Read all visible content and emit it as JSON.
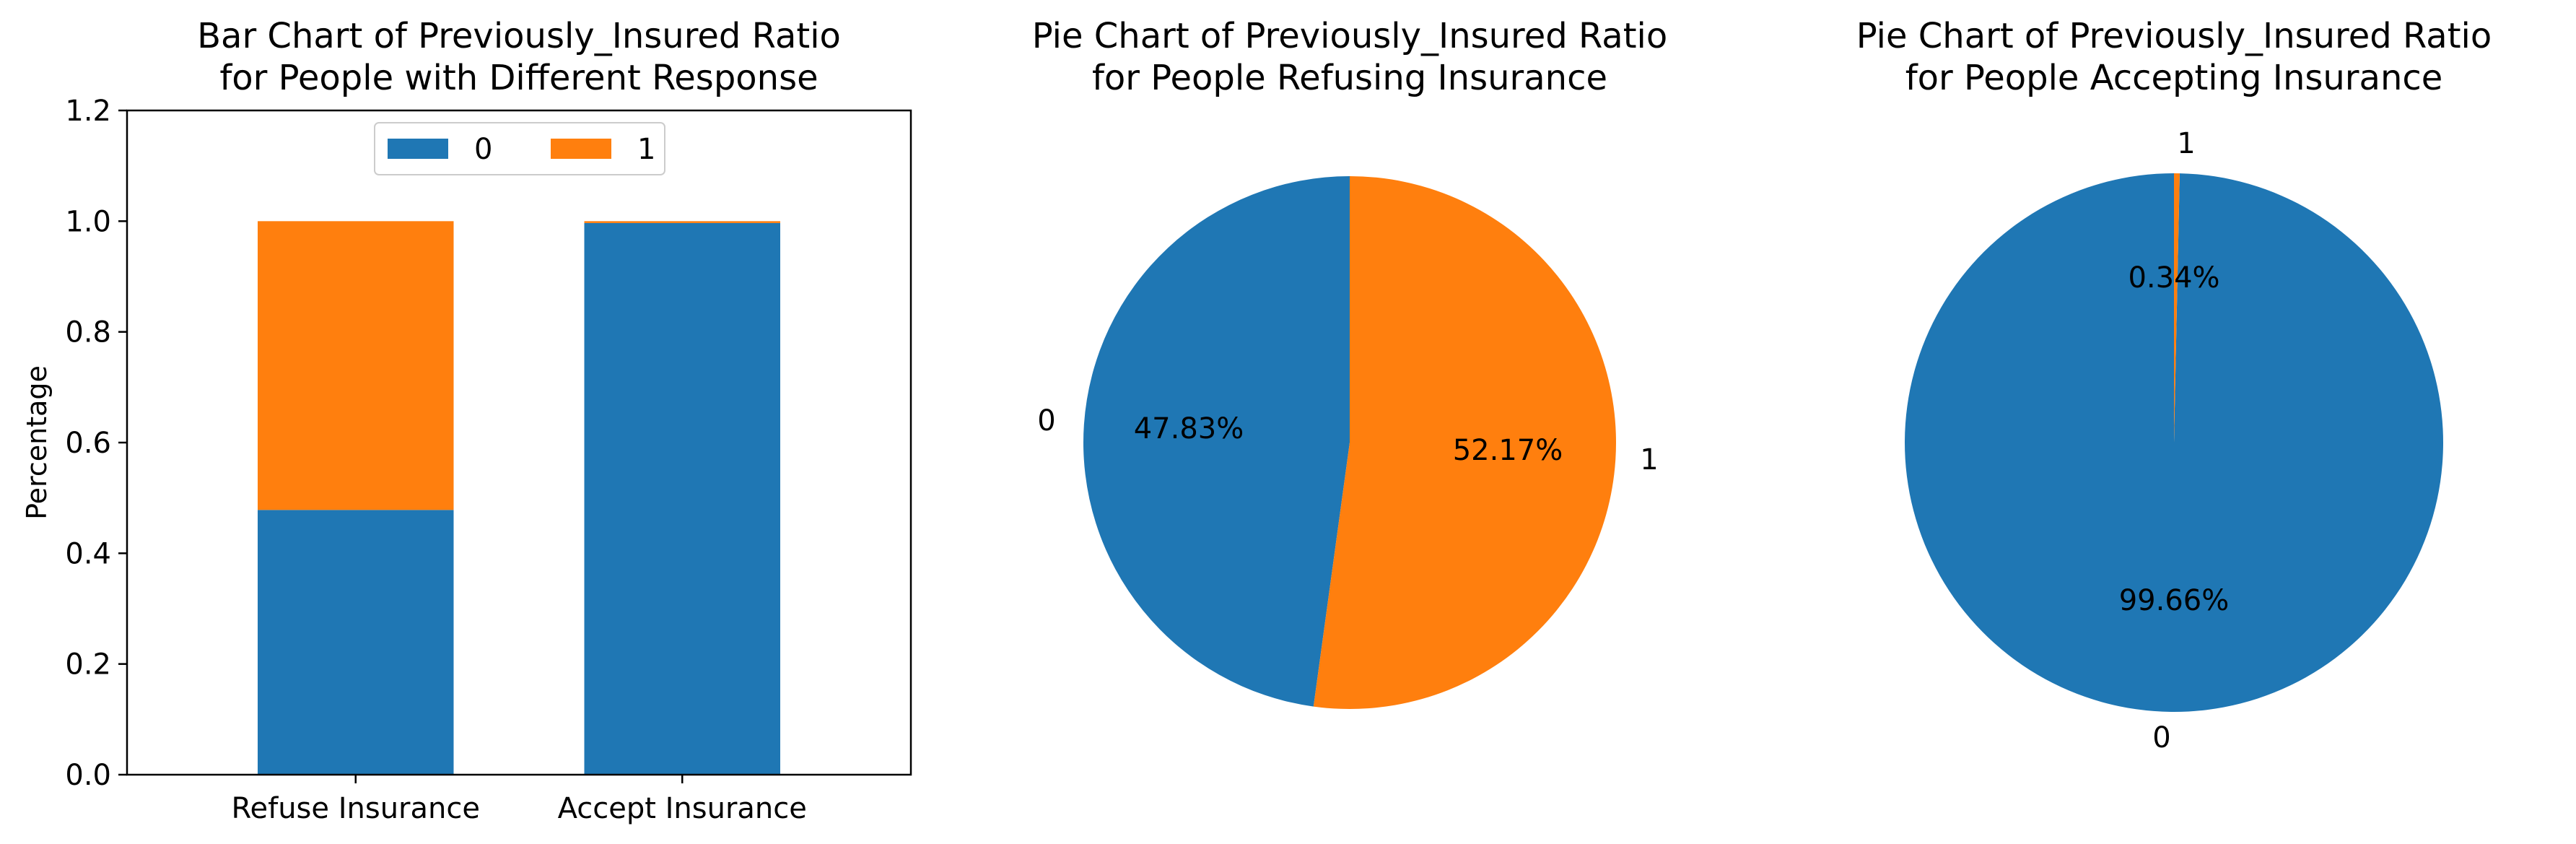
{
  "chart_data": [
    {
      "type": "bar",
      "stacked": true,
      "title": "Bar Chart of Previously_Insured Ratio\nfor People with Different Response",
      "xlabel": "",
      "ylabel": "Percentage",
      "categories": [
        "Refuse Insurance",
        "Accept Insurance"
      ],
      "series": [
        {
          "name": "0",
          "values": [
            0.4783,
            0.9966
          ]
        },
        {
          "name": "1",
          "values": [
            0.5217,
            0.0034
          ]
        }
      ],
      "ylim": [
        0,
        1.2
      ],
      "yticks": [
        "0.0",
        "0.2",
        "0.4",
        "0.6",
        "0.8",
        "1.0",
        "1.2"
      ],
      "legend": {
        "placement": "upper-center",
        "ncol": 2
      },
      "grid": false
    },
    {
      "type": "pie",
      "title": "Pie Chart of Previously_Insured Ratio\nfor People Refusing Insurance",
      "labels": [
        "0",
        "1"
      ],
      "values": [
        47.83,
        52.17
      ],
      "autopct": [
        "47.83%",
        "52.17%"
      ],
      "startangle": 90
    },
    {
      "type": "pie",
      "title": "Pie Chart of Previously_Insured Ratio\nfor People Accepting Insurance",
      "labels": [
        "0",
        "1"
      ],
      "values": [
        99.66,
        0.34
      ],
      "autopct": [
        "99.66%",
        "0.34%"
      ],
      "startangle": 90
    }
  ],
  "colors": {
    "series0": "#1f77b4",
    "series1": "#ff7f0e",
    "axis": "#000000"
  }
}
